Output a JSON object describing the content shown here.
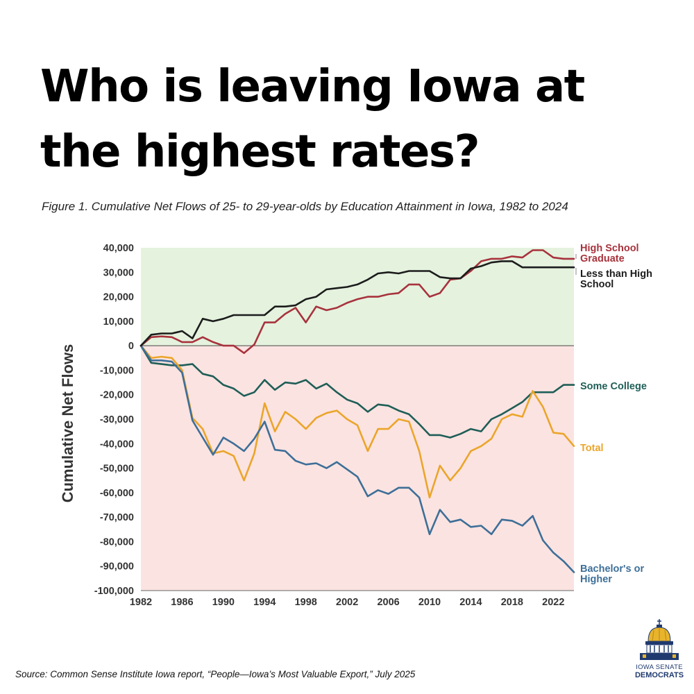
{
  "headline": "Who is leaving Iowa at the highest rates?",
  "source": "Source: Common Sense Institute Iowa report, “People—Iowa’s Most Valuable Export,” July 2025",
  "logo": {
    "line1": "IOWA SENATE",
    "line2": "DEMOCRATS",
    "icon": "capitol-dome-icon"
  },
  "colors": {
    "positive_band": "#e4f2de",
    "negative_band": "#fbe3e1",
    "high_school_graduate": "#a8323c",
    "less_than_high_school": "#1c1c1c",
    "some_college": "#1f5e57",
    "total": "#eba52a",
    "bachelors_or_higher": "#3d6f98"
  },
  "chart_data": {
    "type": "line",
    "title": "Figure 1. Cumulative Net Flows of 25- to 29-year-olds by Education Attainment in Iowa, 1982 to 2024",
    "xlabel": "",
    "ylabel": "Cumulative Net Flows",
    "xlim": [
      1982,
      2024
    ],
    "ylim": [
      -100000,
      40000
    ],
    "x_ticks": [
      1982,
      1986,
      1990,
      1994,
      1998,
      2002,
      2006,
      2010,
      2014,
      2018,
      2022
    ],
    "y_ticks": [
      40000,
      30000,
      20000,
      10000,
      0,
      -10000,
      -20000,
      -30000,
      -40000,
      -50000,
      -60000,
      -70000,
      -80000,
      -90000,
      -100000
    ],
    "x_tick_labels": [
      "1982",
      "1986",
      "1990",
      "1994",
      "1998",
      "2002",
      "2006",
      "2010",
      "2014",
      "2018",
      "2022"
    ],
    "y_tick_labels": [
      "40,000",
      "30,000",
      "20,000",
      "10,000",
      "0",
      "-10,000",
      "-20,000",
      "-30,000",
      "-40,000",
      "-50,000",
      "-60,000",
      "-70,000",
      "-80,000",
      "-90,000",
      "-100,000"
    ],
    "grid": false,
    "legend": "direct labels at right",
    "x": [
      1982,
      1983,
      1984,
      1985,
      1986,
      1987,
      1988,
      1989,
      1990,
      1991,
      1992,
      1993,
      1994,
      1995,
      1996,
      1997,
      1998,
      1999,
      2000,
      2001,
      2002,
      2003,
      2004,
      2005,
      2006,
      2007,
      2008,
      2009,
      2010,
      2011,
      2012,
      2013,
      2014,
      2015,
      2016,
      2017,
      2018,
      2019,
      2020,
      2021,
      2022,
      2023,
      2024
    ],
    "series": [
      {
        "name": "High School Graduate",
        "label_lines": [
          "High School",
          "Graduate"
        ],
        "color_key": "high_school_graduate",
        "values": [
          0,
          3500,
          3800,
          3500,
          1500,
          1500,
          3500,
          1500,
          0,
          0,
          -3000,
          500,
          9500,
          9500,
          13000,
          15500,
          9500,
          16000,
          14500,
          15500,
          17500,
          19000,
          20000,
          20000,
          21000,
          21500,
          25000,
          25000,
          20000,
          21500,
          27000,
          27500,
          30500,
          34500,
          35500,
          35500,
          36500,
          36000,
          39000,
          39000,
          36000,
          35500,
          35500
        ]
      },
      {
        "name": "Less than High School",
        "label_lines": [
          "Less than High",
          "School"
        ],
        "color_key": "less_than_high_school",
        "values": [
          0,
          4500,
          5000,
          5000,
          6000,
          3000,
          11000,
          10000,
          11000,
          12500,
          12500,
          12500,
          12500,
          16000,
          16000,
          16500,
          19000,
          20000,
          23000,
          23500,
          24000,
          25000,
          27000,
          29500,
          30000,
          29500,
          30500,
          30500,
          30500,
          28000,
          27500,
          27500,
          31500,
          32500,
          34000,
          34500,
          34500,
          32000,
          32000,
          32000,
          32000,
          32000,
          32000
        ]
      },
      {
        "name": "Some College",
        "label_lines": [
          "Some College"
        ],
        "color_key": "some_college",
        "values": [
          0,
          -7000,
          -7500,
          -8000,
          -8000,
          -7500,
          -11500,
          -12500,
          -16000,
          -17500,
          -20500,
          -19000,
          -14000,
          -18000,
          -15000,
          -15500,
          -14000,
          -17500,
          -15500,
          -19000,
          -22000,
          -23500,
          -27000,
          -24000,
          -24500,
          -26500,
          -28000,
          -32000,
          -36500,
          -36500,
          -37500,
          -36000,
          -34000,
          -35000,
          -30000,
          -28000,
          -25500,
          -23000,
          -19000,
          -19000,
          -19000,
          -16000,
          -16000
        ]
      },
      {
        "name": "Total",
        "label_lines": [
          "Total"
        ],
        "color_key": "total",
        "values": [
          0,
          -5000,
          -4500,
          -5000,
          -10000,
          -29500,
          -34000,
          -44000,
          -43000,
          -45000,
          -55000,
          -44000,
          -23500,
          -35000,
          -27000,
          -30000,
          -34000,
          -29500,
          -27500,
          -26500,
          -30000,
          -32500,
          -43000,
          -34000,
          -34000,
          -30000,
          -31000,
          -43000,
          -62000,
          -49000,
          -55000,
          -50000,
          -43000,
          -41000,
          -38000,
          -30000,
          -28000,
          -29000,
          -18500,
          -25000,
          -35500,
          -36000,
          -41000
        ]
      },
      {
        "name": "Bachelor's or Higher",
        "label_lines": [
          "Bachelor's or",
          "Higher"
        ],
        "color_key": "bachelors_or_higher",
        "values": [
          0,
          -6000,
          -6000,
          -6500,
          -11000,
          -30500,
          -37500,
          -44500,
          -37500,
          -40000,
          -43000,
          -38000,
          -31000,
          -42500,
          -43000,
          -47000,
          -48500,
          -48000,
          -50000,
          -47500,
          -50500,
          -53500,
          -61500,
          -59000,
          -60500,
          -58000,
          -58000,
          -62000,
          -77000,
          -67000,
          -72000,
          -71000,
          -74000,
          -73500,
          -77000,
          -71000,
          -71500,
          -73500,
          -69500,
          -79500,
          -84500,
          -88000,
          -92500
        ]
      }
    ]
  }
}
